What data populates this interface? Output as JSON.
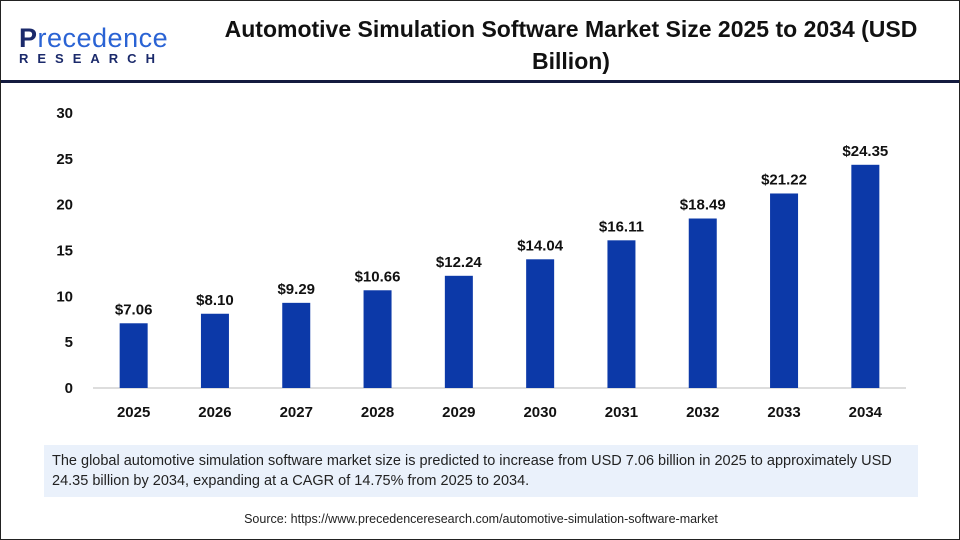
{
  "logo": {
    "line1": "Precedence",
    "line2": "RESEARCH"
  },
  "title": "Automotive Simulation Software Market Size 2025 to 2034 (USD Billion)",
  "colors": {
    "bar": "#0c39a8",
    "divider": "#141b3f",
    "note_bg": "#eaf1fb"
  },
  "chart_data": {
    "type": "bar",
    "title": "Automotive Simulation Software Market Size 2025 to 2034 (USD Billion)",
    "categories": [
      "2025",
      "2026",
      "2027",
      "2028",
      "2029",
      "2030",
      "2031",
      "2032",
      "2033",
      "2034"
    ],
    "values": [
      7.06,
      8.1,
      9.29,
      10.66,
      12.24,
      14.04,
      16.11,
      18.49,
      21.22,
      24.35
    ],
    "data_labels": [
      "$7.06",
      "$8.10",
      "$9.29",
      "$10.66",
      "$12.24",
      "$14.04",
      "$16.11",
      "$18.49",
      "$21.22",
      "$24.35"
    ],
    "yticks": [
      "0",
      "5",
      "10",
      "15",
      "20",
      "25",
      "30"
    ],
    "ylim": [
      0,
      30
    ],
    "grid": false
  },
  "note": "The global automotive simulation software market size is predicted to increase from USD 7.06 billion in 2025 to approximately USD 24.35 billion by 2034, expanding at a CAGR of 14.75% from 2025 to 2034.",
  "source": "Source: https://www.precedenceresearch.com/automotive-simulation-software-market"
}
